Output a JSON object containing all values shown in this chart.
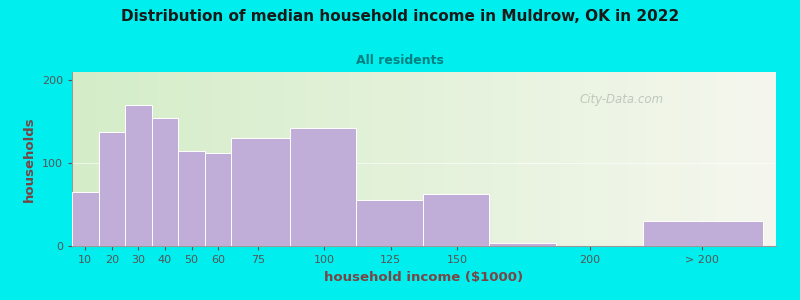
{
  "title": "Distribution of median household income in Muldrow, OK in 2022",
  "subtitle": "All residents",
  "xlabel": "household income ($1000)",
  "ylabel": "households",
  "background_outer": "#00EEEE",
  "background_inner_left": "#d4edc8",
  "background_inner_right": "#f5f7ee",
  "bar_color": "#c0aed8",
  "bar_edge_color": "#ffffff",
  "title_color": "#1a1a1a",
  "subtitle_color": "#008080",
  "axis_label_color": "#7a4444",
  "tick_color": "#555555",
  "watermark": "City-Data.com",
  "categories": [
    "10",
    "20",
    "30",
    "40",
    "50",
    "60",
    "75",
    "100",
    "125",
    "150",
    "200",
    "> 200"
  ],
  "values": [
    65,
    138,
    170,
    155,
    115,
    112,
    130,
    143,
    55,
    63,
    4,
    30
  ],
  "bar_left_edges": [
    5,
    15,
    25,
    35,
    45,
    55,
    65,
    87,
    112,
    137,
    162,
    220
  ],
  "bar_right_edges": [
    15,
    25,
    35,
    45,
    55,
    65,
    87,
    112,
    137,
    162,
    187,
    265
  ],
  "ylim": [
    0,
    210
  ],
  "yticks": [
    0,
    100,
    200
  ],
  "xtick_positions": [
    10,
    20,
    30,
    40,
    50,
    60,
    75,
    100,
    125,
    150,
    200
  ],
  "xtick_labels": [
    "10",
    "20",
    "30",
    "40",
    "50",
    "60",
    "75",
    "100",
    "125",
    "150",
    "200"
  ],
  "gt200_tick": 242,
  "gt200_label": "> 200",
  "xlim": [
    5,
    270
  ],
  "figsize": [
    8.0,
    3.0
  ],
  "dpi": 100
}
